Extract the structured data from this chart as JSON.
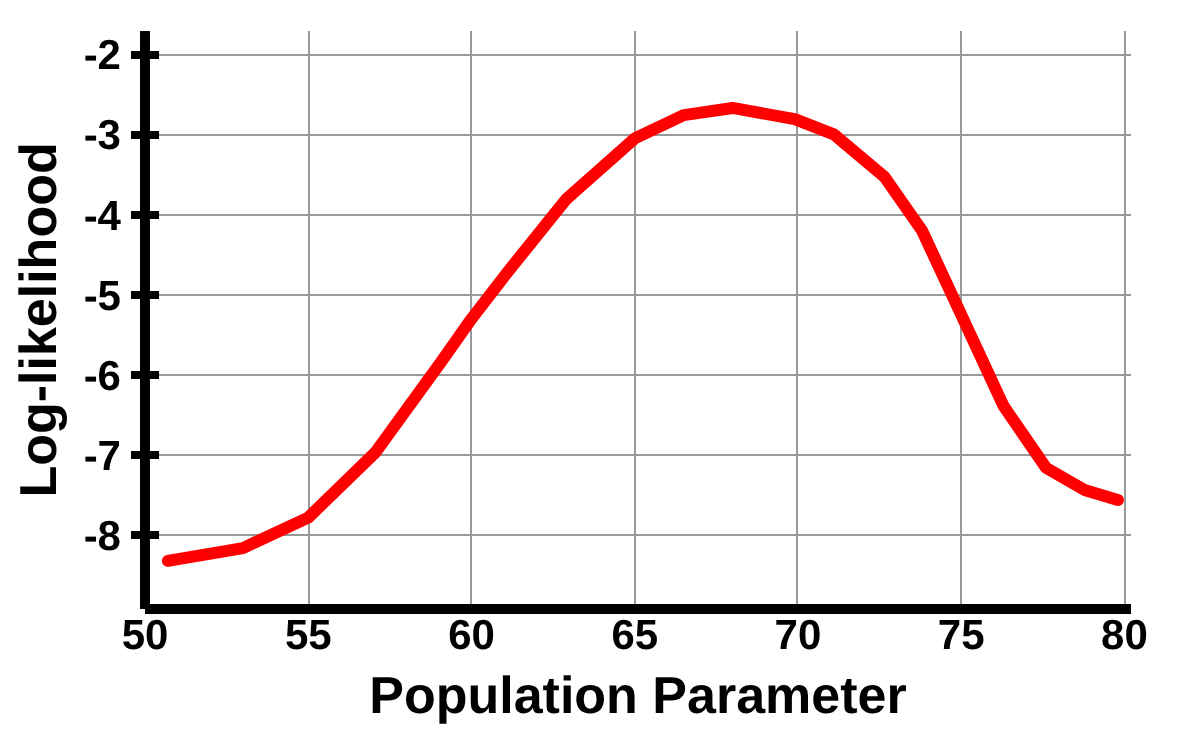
{
  "chart_data": {
    "type": "line",
    "xlabel": "Population Parameter",
    "ylabel": "Log-likelihood",
    "xlim": [
      50,
      80.2
    ],
    "ylim": [
      -8.92,
      -1.71
    ],
    "xticks": [
      50,
      55,
      60,
      65,
      70,
      75,
      80
    ],
    "yticks": [
      -8,
      -7,
      -6,
      -5,
      -4,
      -3,
      -2
    ],
    "grid": true,
    "line_style": "solid",
    "marker": "none",
    "series": [
      {
        "color": "#ff0000",
        "x": [
          50.7,
          53.0,
          55.0,
          57.05,
          59.1,
          60.0,
          61.1,
          62.9,
          65.0,
          66.5,
          68.0,
          69.9,
          71.1,
          72.65,
          73.8,
          75.0,
          76.3,
          77.6,
          78.8,
          79.8
        ],
        "values": [
          -8.32,
          -8.16,
          -7.78,
          -6.97,
          -5.82,
          -5.3,
          -4.72,
          -3.81,
          -3.05,
          -2.76,
          -2.67,
          -2.81,
          -3.0,
          -3.53,
          -4.2,
          -5.25,
          -6.39,
          -7.16,
          -7.44,
          -7.56
        ]
      }
    ]
  }
}
